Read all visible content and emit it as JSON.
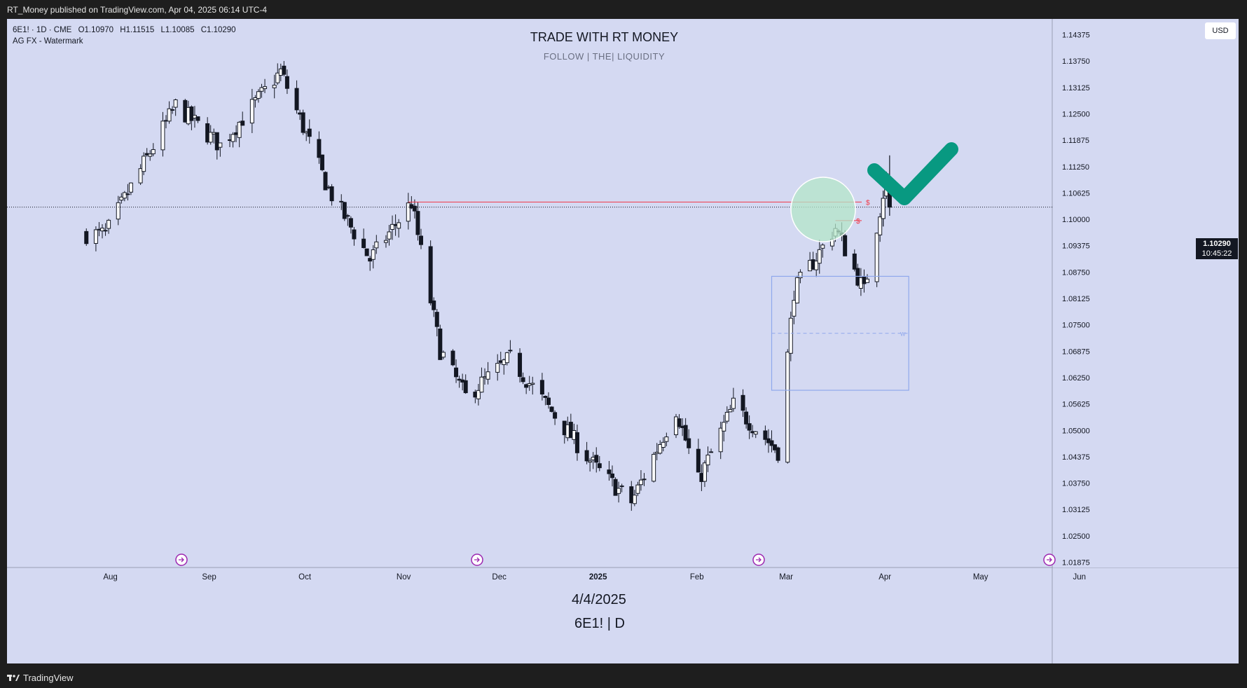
{
  "header": {
    "published": "RT_Money published on TradingView.com, Apr 04, 2025 06:14 UTC-4"
  },
  "footer": {
    "brand": "TradingView"
  },
  "legend": {
    "symbol": "6E1! · 1D · CME",
    "open": "O1.10970",
    "high": "H1.11515",
    "low": "L1.10085",
    "close": "C1.10290",
    "indicator": "AG FX - Watermark"
  },
  "watermark": {
    "title": "TRADE WITH RT MONEY",
    "subtitle": "FOLLOW  |  THE|  LIQUIDITY",
    "date": "4/4/2025",
    "symbol": "6E1! | D"
  },
  "price_scale": {
    "currency": "USD",
    "last_price": "1.10290",
    "countdown": "10:45:22"
  },
  "annotations": {
    "liquidity_marker": "$",
    "box_label": "w"
  },
  "colors": {
    "background": "#d4d9f2",
    "candle_up": "#ffffff",
    "candle_down": "#131722",
    "level_line": "#f23645",
    "zone_box": "#8fa8ec",
    "circle": "#b4e6c8",
    "checkmark": "#089981"
  },
  "chart_data": {
    "type": "candlestick",
    "title": "TRADE WITH RT MONEY",
    "symbol": "6E1!",
    "timeframe": "1D",
    "x_tick_labels": [
      "Aug",
      "Sep",
      "Oct",
      "Nov",
      "Dec",
      "2025",
      "Feb",
      "Mar",
      "Apr",
      "May",
      "Jun"
    ],
    "y_tick_labels": [
      "1.14375",
      "1.13750",
      "1.13125",
      "1.12500",
      "1.11875",
      "1.11250",
      "1.10625",
      "1.10000",
      "1.09375",
      "1.08750",
      "1.08125",
      "1.07500",
      "1.06875",
      "1.06250",
      "1.05625",
      "1.05000",
      "1.04375",
      "1.03750",
      "1.03125",
      "1.02500",
      "1.01875"
    ],
    "ylim": [
      1.0175,
      1.1475
    ],
    "key_prices": [
      {
        "date": "2024-08-01",
        "close": 1.0965
      },
      {
        "date": "2024-08-23",
        "close": 1.127
      },
      {
        "date": "2024-09-06",
        "close": 1.1175
      },
      {
        "date": "2024-09-25",
        "close": 1.135
      },
      {
        "date": "2024-10-10",
        "close": 1.107
      },
      {
        "date": "2024-10-23",
        "close": 1.0905
      },
      {
        "date": "2024-11-05",
        "close": 1.104
      },
      {
        "date": "2024-11-14",
        "close": 1.069
      },
      {
        "date": "2024-11-22",
        "close": 1.058
      },
      {
        "date": "2024-12-06",
        "close": 1.067
      },
      {
        "date": "2025-01-02",
        "close": 1.041
      },
      {
        "date": "2025-01-13",
        "close": 1.033
      },
      {
        "date": "2025-01-27",
        "close": 1.055
      },
      {
        "date": "2025-02-03",
        "close": 1.038
      },
      {
        "date": "2025-02-14",
        "close": 1.056
      },
      {
        "date": "2025-02-28",
        "close": 1.045
      },
      {
        "date": "2025-03-05",
        "close": 1.083
      },
      {
        "date": "2025-03-18",
        "close": 1.098
      },
      {
        "date": "2025-03-27",
        "close": 1.083
      },
      {
        "date": "2025-04-03",
        "close": 1.11
      },
      {
        "date": "2025-04-04",
        "open": 1.1097,
        "high": 1.11515,
        "low": 1.10085,
        "close": 1.1029
      }
    ],
    "levels": [
      {
        "label": "$",
        "price": 1.1041
      },
      {
        "label": "$",
        "price": 1.0997
      }
    ],
    "zone": {
      "label": "w",
      "price_top": 1.0865,
      "price_mid": 1.073,
      "price_bottom": 1.0595,
      "from": "2025-02-26",
      "to": "2025-04-10"
    }
  }
}
